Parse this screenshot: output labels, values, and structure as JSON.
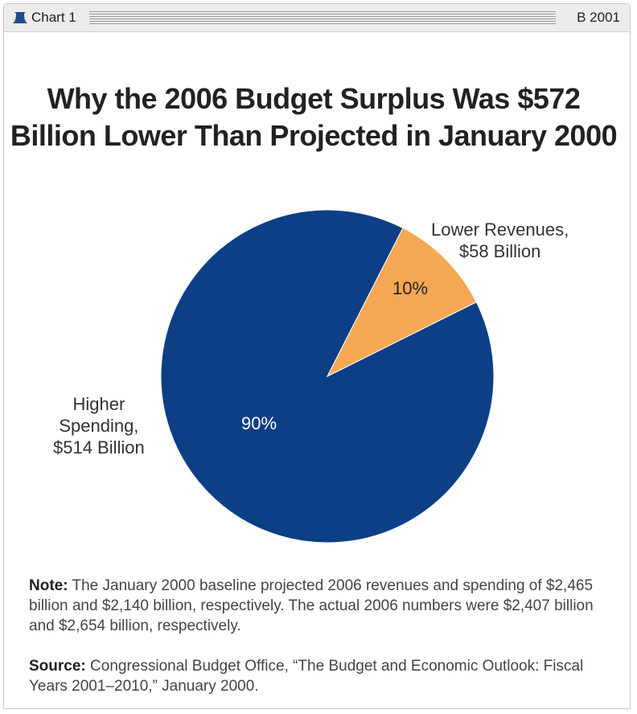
{
  "header": {
    "chart_number": "Chart 1",
    "report_code": "B 2001",
    "logo_icon": "liberty-bell-icon",
    "logo_color": "#1f4e8f"
  },
  "chart_data": {
    "type": "pie",
    "title": "Why the 2006 Budget Surplus Was $572 Billion Lower Than Projected in January 2000",
    "title_lines": [
      "Why the 2006 Budget Surplus Was $572",
      "Billion Lower Than Projected in January 2000"
    ],
    "slices": [
      {
        "label_lines": [
          "Higher",
          "Spending,",
          "$514 Billion"
        ],
        "value": 514,
        "percent_label": "90%",
        "color": "#0d3f87"
      },
      {
        "label_lines": [
          "Lower Revenues,",
          "$58 Billion"
        ],
        "value": 58,
        "percent_label": "10%",
        "color": "#f5a753"
      }
    ]
  },
  "footnotes": {
    "note_label": "Note:",
    "note_text": "The January 2000 baseline projected 2006 revenues and spending of $2,465 billion and $2,140 billion, respectively. The actual 2006 numbers were $2,407 billion and $2,654 billion, respectively.",
    "source_label": "Source:",
    "source_text": "Congressional Budget Office, “The Budget and Economic Outlook: Fiscal Years 2001–2010,” January 2000."
  }
}
